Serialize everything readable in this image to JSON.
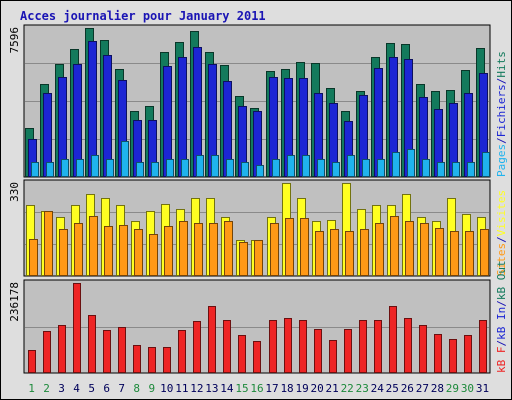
{
  "title": "Acces journalier pour January 2011",
  "colors": {
    "pages": "137a5c",
    "hits": "1c26d4",
    "files": "1fb3ee",
    "visits": "ffff22",
    "sites": "ff9916",
    "kbytes": "ee2424",
    "panel_bg": "c0c0c0",
    "frame_bg": "dedede",
    "title": "1a14b4"
  },
  "chart_data": [
    {
      "type": "bar",
      "panel": "hits_files_pages",
      "title": "Acces journalier pour January 2011",
      "ymax_label": "7596",
      "right_labels": [
        {
          "text": "Pages",
          "colorKey": "files"
        },
        {
          "text": "/",
          "colorKey": "title"
        },
        {
          "text": "Fichiers",
          "colorKey": "hits"
        },
        {
          "text": "/",
          "colorKey": "title"
        },
        {
          "text": "Hits",
          "colorKey": "pages"
        }
      ],
      "categories": [
        "1",
        "2",
        "3",
        "4",
        "5",
        "6",
        "7",
        "8",
        "9",
        "10",
        "11",
        "12",
        "13",
        "14",
        "15",
        "16",
        "17",
        "18",
        "19",
        "20",
        "21",
        "22",
        "23",
        "24",
        "25",
        "26",
        "27",
        "28",
        "29",
        "30",
        "31"
      ],
      "ylim": [
        0,
        7596
      ],
      "series": [
        {
          "name": "Hits",
          "colorKey": "pages",
          "values": [
            2480,
            4720,
            5780,
            6500,
            7596,
            6960,
            5520,
            3350,
            3600,
            6390,
            6900,
            7430,
            6350,
            5700,
            4120,
            3520,
            5410,
            5520,
            5840,
            5820,
            4520,
            3350,
            4370,
            6110,
            6810,
            6800,
            4720,
            4370,
            4420,
            5480,
            6600
          ]
        },
        {
          "name": "Fichiers",
          "colorKey": "hits",
          "values": [
            1950,
            4300,
            5100,
            5760,
            6950,
            6210,
            4960,
            2930,
            2930,
            5640,
            6120,
            6610,
            5760,
            4910,
            3600,
            3350,
            5080,
            5060,
            5060,
            4270,
            3760,
            2880,
            4180,
            5570,
            6140,
            6040,
            4090,
            3460,
            3790,
            4280,
            5310
          ]
        },
        {
          "name": "Pages",
          "colorKey": "files",
          "values": [
            760,
            760,
            930,
            930,
            1100,
            930,
            1860,
            760,
            760,
            930,
            930,
            1100,
            1100,
            930,
            760,
            590,
            930,
            1100,
            1100,
            930,
            760,
            1100,
            930,
            930,
            1270,
            1440,
            930,
            760,
            760,
            760,
            1270
          ]
        }
      ]
    },
    {
      "type": "bar",
      "panel": "visits_sites",
      "ymax_label": "330",
      "right_labels": [
        {
          "text": "Sites",
          "colorKey": "sites"
        },
        {
          "text": "/",
          "colorKey": "title"
        },
        {
          "text": "Visites",
          "colorKey": "visits"
        }
      ],
      "categories": [
        "1",
        "2",
        "3",
        "4",
        "5",
        "6",
        "7",
        "8",
        "9",
        "10",
        "11",
        "12",
        "13",
        "14",
        "15",
        "16",
        "17",
        "18",
        "19",
        "20",
        "21",
        "22",
        "23",
        "24",
        "25",
        "26",
        "27",
        "28",
        "29",
        "30",
        "31"
      ],
      "ylim": [
        0,
        330
      ],
      "series": [
        {
          "name": "Visites",
          "colorKey": "visits",
          "values": [
            251,
            229,
            211,
            251,
            291,
            276,
            251,
            196,
            229,
            256,
            236,
            276,
            276,
            211,
            127,
            127,
            211,
            330,
            276,
            196,
            198,
            330,
            236,
            251,
            251,
            291,
            211,
            196,
            276,
            220,
            211
          ]
        },
        {
          "name": "Sites",
          "colorKey": "sites",
          "values": [
            132,
            229,
            165,
            189,
            212,
            178,
            180,
            165,
            150,
            178,
            196,
            189,
            189,
            196,
            119,
            127,
            189,
            205,
            205,
            158,
            165,
            158,
            165,
            189,
            212,
            196,
            189,
            172,
            158,
            158,
            165
          ]
        }
      ]
    },
    {
      "type": "bar",
      "panel": "kbytes",
      "ymax_label": "236178",
      "right_labels": [
        {
          "text": "kB F",
          "colorKey": "kbytes"
        },
        {
          "text": "/",
          "colorKey": "title"
        },
        {
          "text": "kB In",
          "colorKey": "hits"
        },
        {
          "text": "/",
          "colorKey": "title"
        },
        {
          "text": "kB Out",
          "colorKey": "pages"
        }
      ],
      "categories": [
        "1",
        "2",
        "3",
        "4",
        "5",
        "6",
        "7",
        "8",
        "9",
        "10",
        "11",
        "12",
        "13",
        "14",
        "15",
        "16",
        "17",
        "18",
        "19",
        "20",
        "21",
        "22",
        "23",
        "24",
        "25",
        "26",
        "27",
        "28",
        "29",
        "30",
        "31"
      ],
      "ylim": [
        0,
        236178
      ],
      "series": [
        {
          "name": "kB F",
          "colorKey": "kbytes",
          "values": [
            61000,
            110000,
            125000,
            236178,
            152000,
            112000,
            122000,
            74000,
            69000,
            69000,
            114000,
            137000,
            175000,
            140000,
            101000,
            85000,
            140000,
            145000,
            140000,
            116000,
            86000,
            116000,
            140000,
            140000,
            175000,
            145000,
            125000,
            102000,
            90000,
            101000,
            140000
          ]
        }
      ]
    }
  ],
  "x_axis": {
    "labels": [
      "1",
      "2",
      "3",
      "4",
      "5",
      "6",
      "7",
      "8",
      "9",
      "10",
      "11",
      "12",
      "13",
      "14",
      "15",
      "16",
      "17",
      "18",
      "19",
      "20",
      "21",
      "22",
      "23",
      "24",
      "25",
      "26",
      "27",
      "28",
      "29",
      "30",
      "31"
    ],
    "weekend": [
      1,
      2,
      8,
      9,
      15,
      16,
      22,
      23,
      29,
      30
    ]
  }
}
